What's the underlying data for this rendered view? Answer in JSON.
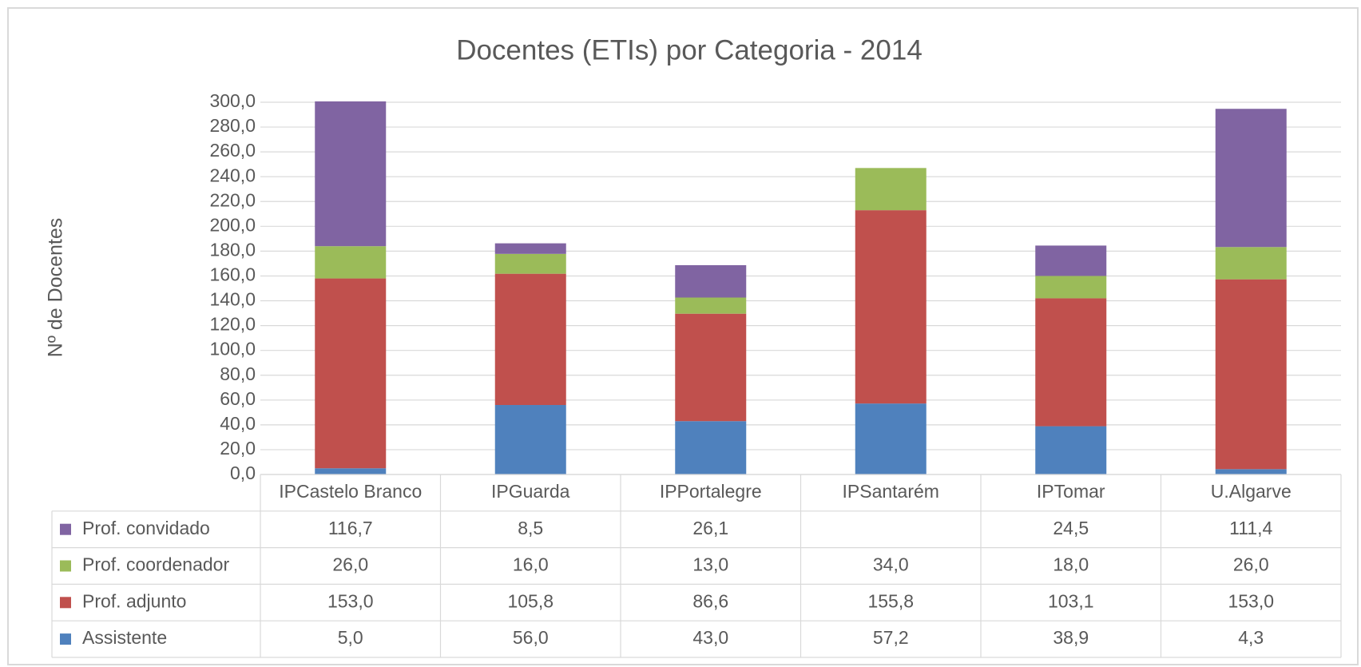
{
  "chart_data": {
    "type": "stacked_bar",
    "title": "Docentes (ETIs) por Categoria - 2014",
    "y_label": "Nº de Docentes",
    "categories": [
      "IPCastelo Branco",
      "IPGuarda",
      "IPPortalegre",
      "IPSantarém",
      "IPTomar",
      "U.Algarve"
    ],
    "series": [
      {
        "name": "Prof. convidado",
        "color": "#8064a2",
        "values": [
          116.7,
          8.5,
          26.1,
          null,
          24.5,
          111.4
        ],
        "value_labels": [
          "116,7",
          "8,5",
          "26,1",
          null,
          "24,5",
          "111,4"
        ]
      },
      {
        "name": "Prof. coordenador",
        "color": "#9bbb59",
        "values": [
          26.0,
          16.0,
          13.0,
          34.0,
          18.0,
          26.0
        ],
        "value_labels": [
          "26,0",
          "16,0",
          "13,0",
          "34,0",
          "18,0",
          "26,0"
        ]
      },
      {
        "name": "Prof. adjunto",
        "color": "#c0504d",
        "values": [
          153.0,
          105.8,
          86.6,
          155.8,
          103.1,
          153.0
        ],
        "value_labels": [
          "153,0",
          "105,8",
          "86,6",
          "155,8",
          "103,1",
          "153,0"
        ]
      },
      {
        "name": "Assistente",
        "color": "#4f81bd",
        "values": [
          5.0,
          56.0,
          43.0,
          57.2,
          38.9,
          4.3
        ],
        "value_labels": [
          "5,0",
          "56,0",
          "43,0",
          "57,2",
          "38,9",
          "4,3"
        ]
      }
    ],
    "ylim": [
      0,
      300
    ],
    "yticks": [
      {
        "value": 0,
        "label": "0,0"
      },
      {
        "value": 20,
        "label": "20,0"
      },
      {
        "value": 40,
        "label": "40,0"
      },
      {
        "value": 60,
        "label": "60,0"
      },
      {
        "value": 80,
        "label": "80,0"
      },
      {
        "value": 100,
        "label": "100,0"
      },
      {
        "value": 120,
        "label": "120,0"
      },
      {
        "value": 140,
        "label": "140,0"
      },
      {
        "value": 160,
        "label": "160,0"
      },
      {
        "value": 180,
        "label": "180,0"
      },
      {
        "value": 200,
        "label": "200,0"
      },
      {
        "value": 220,
        "label": "220,0"
      },
      {
        "value": 240,
        "label": "240,0"
      },
      {
        "value": 260,
        "label": "260,0"
      },
      {
        "value": 280,
        "label": "280,0"
      },
      {
        "value": 300,
        "label": "300,0"
      }
    ],
    "grid": true
  }
}
